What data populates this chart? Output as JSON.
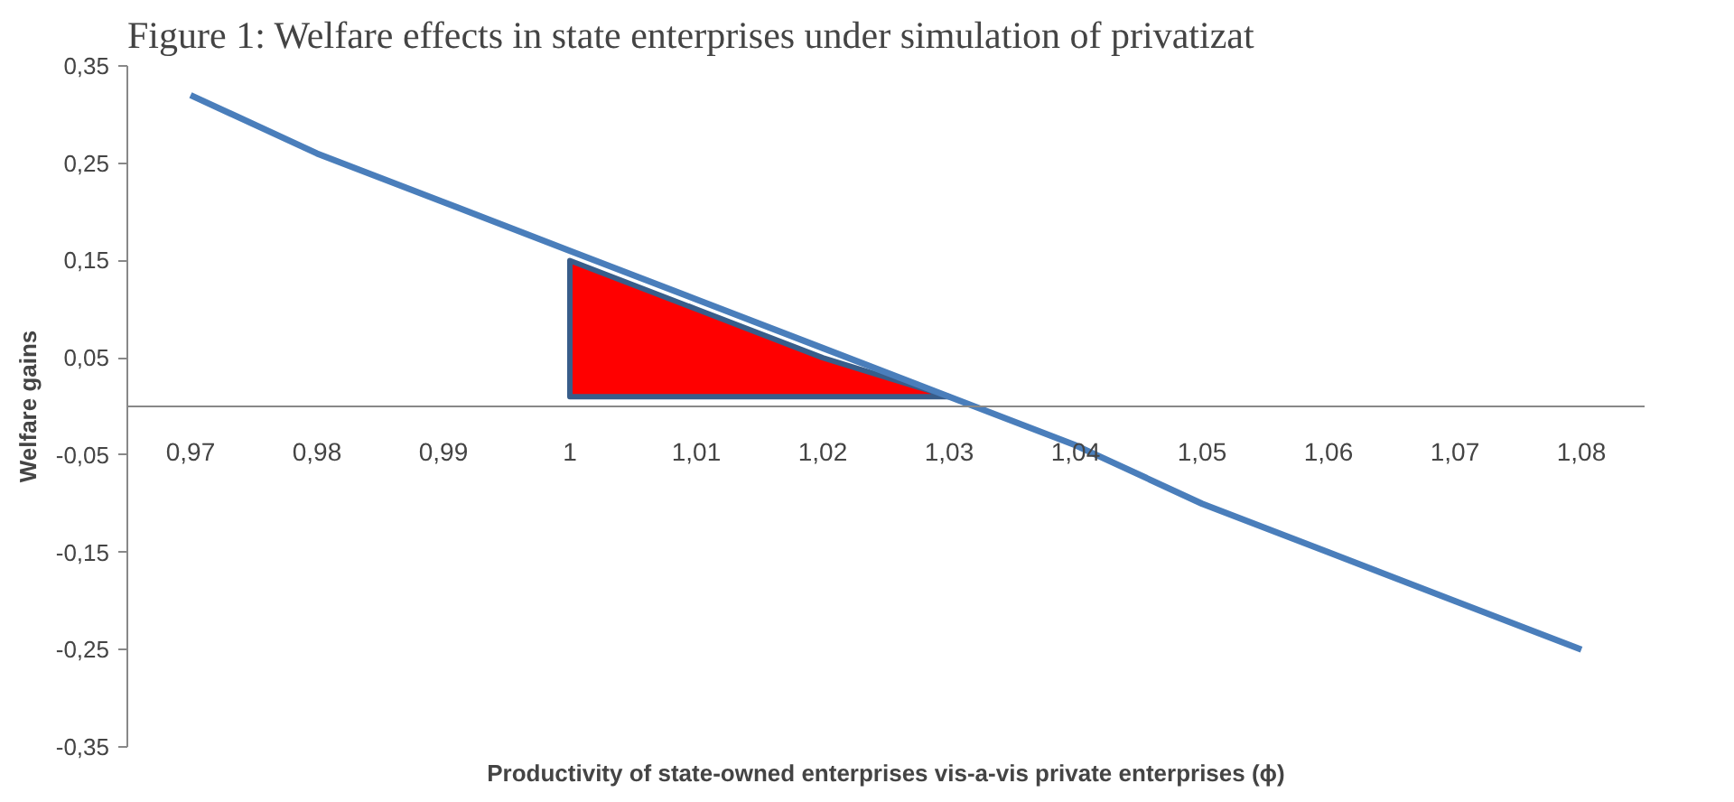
{
  "chart_data": {
    "type": "line",
    "title": "Figure 1: Welfare effects in state enterprises under simulation of privatizat",
    "xlabel": "Productivity of state-owned enterprises vis-a-vis private enterprises (ϕ)",
    "ylabel": "Welfare gains",
    "categories": [
      "0,97",
      "0,98",
      "0,99",
      "1",
      "1,01",
      "1,02",
      "1,03",
      "1,04",
      "1,05",
      "1,06",
      "1,07",
      "1,08"
    ],
    "series": [
      {
        "type": "area",
        "color": "#ff0000",
        "values": [
          null,
          null,
          null,
          0.15,
          0.1,
          0.05,
          0.01,
          null,
          null,
          null,
          null,
          null
        ]
      },
      {
        "color": "#4a7ebb",
        "values": [
          0.32,
          0.26,
          0.21,
          0.16,
          0.11,
          0.06,
          0.01,
          -0.04,
          -0.1,
          -0.15,
          -0.2,
          -0.25
        ]
      }
    ],
    "ylim": [
      -0.35,
      0.35
    ],
    "yticks": [
      {
        "value": -0.35,
        "label": "-0,35"
      },
      {
        "value": -0.25,
        "label": "-0,25"
      },
      {
        "value": -0.15,
        "label": "-0,15"
      },
      {
        "value": -0.05,
        "label": "-0,05"
      },
      {
        "value": 0.05,
        "label": "0,05"
      },
      {
        "value": 0.15,
        "label": "0,15"
      },
      {
        "value": 0.25,
        "label": "0,25"
      },
      {
        "value": 0.35,
        "label": "0,35"
      }
    ],
    "grid": false
  }
}
